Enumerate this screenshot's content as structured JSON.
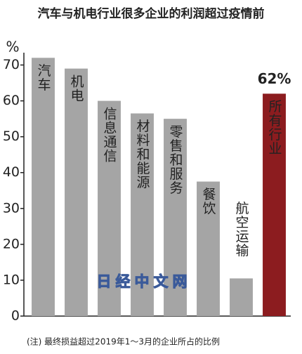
{
  "chart_data": {
    "type": "bar",
    "title": "汽车与机电行业很多企业的利润超过疫情前",
    "y_label": "%",
    "categories": [
      "汽车",
      "机电",
      "信息通信",
      "材料和能源",
      "零售和服务",
      "餐饮",
      "航空运输",
      "所有行业"
    ],
    "values": [
      72,
      69,
      60,
      56.5,
      55,
      37.5,
      10.5,
      62
    ],
    "value_labels": [
      null,
      null,
      null,
      null,
      null,
      null,
      null,
      "62%"
    ],
    "colors": [
      "#a5a5a5",
      "#a5a5a5",
      "#a5a5a5",
      "#a5a5a5",
      "#a5a5a5",
      "#a5a5a5",
      "#a5a5a5",
      "#8c1c1f"
    ],
    "ylim": [
      0,
      75
    ],
    "yticks": [
      0,
      10,
      20,
      30,
      40,
      50,
      60,
      70
    ],
    "grid": false,
    "watermark": "日经中文网",
    "note": "(注) 最终损益超过2019年1～3月的企业所占的比例"
  }
}
